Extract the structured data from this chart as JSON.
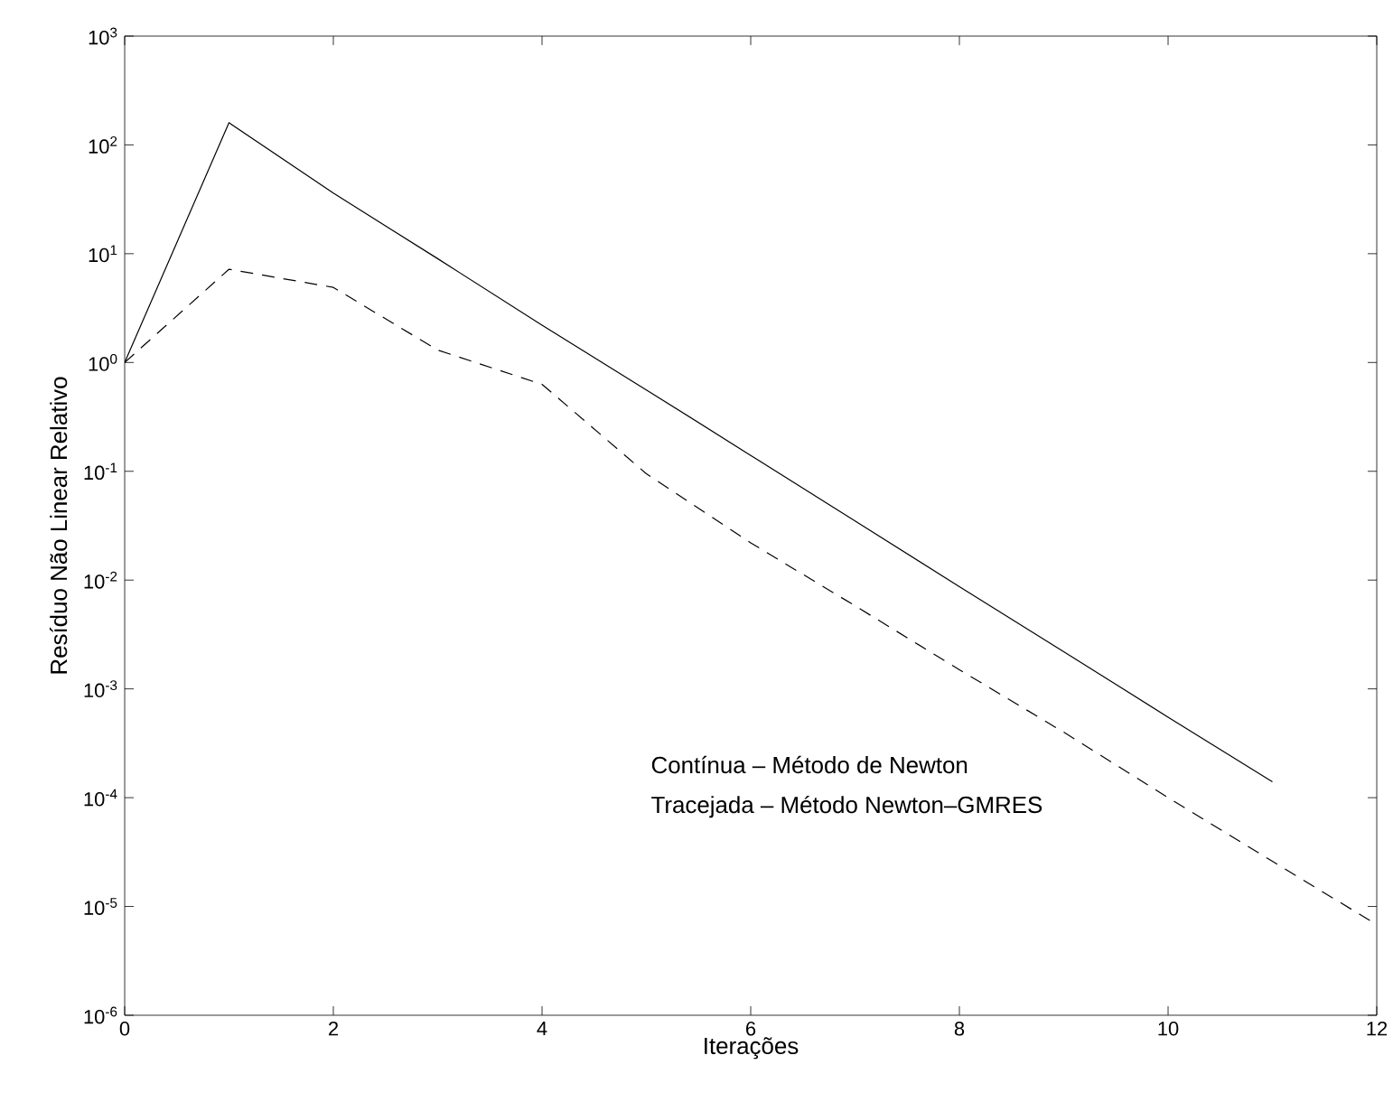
{
  "chart_data": {
    "type": "line",
    "xlabel": "Iterações",
    "ylabel": "Resíduo Não Linear Relativo",
    "log": "y",
    "xlim": [
      0,
      12
    ],
    "ylim": [
      1e-06,
      1000
    ],
    "xticks": [
      0,
      2,
      4,
      6,
      8,
      10,
      12
    ],
    "yticks": [
      {
        "value": 1e-06,
        "label": "10$^{-6}$"
      },
      {
        "value": 1e-05,
        "label": "10$^{-5}$"
      },
      {
        "value": 0.0001,
        "label": "10$^{-4}$"
      },
      {
        "value": 0.001,
        "label": "10$^{-3}$"
      },
      {
        "value": 0.01,
        "label": "10$^{-2}$"
      },
      {
        "value": 0.1,
        "label": "10$^{-1}$"
      },
      {
        "value": 1,
        "label": "10$^{0}$"
      },
      {
        "value": 10,
        "label": "10$^{1}$"
      },
      {
        "value": 100,
        "label": "10$^{2}$"
      },
      {
        "value": 1000,
        "label": "10$^{3}$"
      }
    ],
    "series": [
      {
        "color": "#000000",
        "line_style": "solid",
        "x": [
          0,
          1,
          2,
          3,
          4,
          5,
          6,
          7,
          8,
          9,
          10,
          11
        ],
        "values": [
          1,
          160,
          36,
          9,
          2.2,
          0.56,
          0.14,
          0.035,
          0.0087,
          0.0022,
          0.00055,
          0.00014
        ]
      },
      {
        "color": "#000000",
        "line_style": "dashed",
        "x": [
          0,
          1,
          2,
          3,
          4,
          5,
          6,
          7,
          8,
          9,
          10,
          11,
          12
        ],
        "values": [
          1,
          7.2,
          4.9,
          1.3,
          0.63,
          0.095,
          0.022,
          0.0058,
          0.0015,
          0.0004,
          0.0001,
          2.6e-05,
          6.8e-06
        ]
      }
    ],
    "annotations": [
      "Contínua – Método de Newton",
      "Tracejada – Método Newton–GMRES"
    ]
  }
}
